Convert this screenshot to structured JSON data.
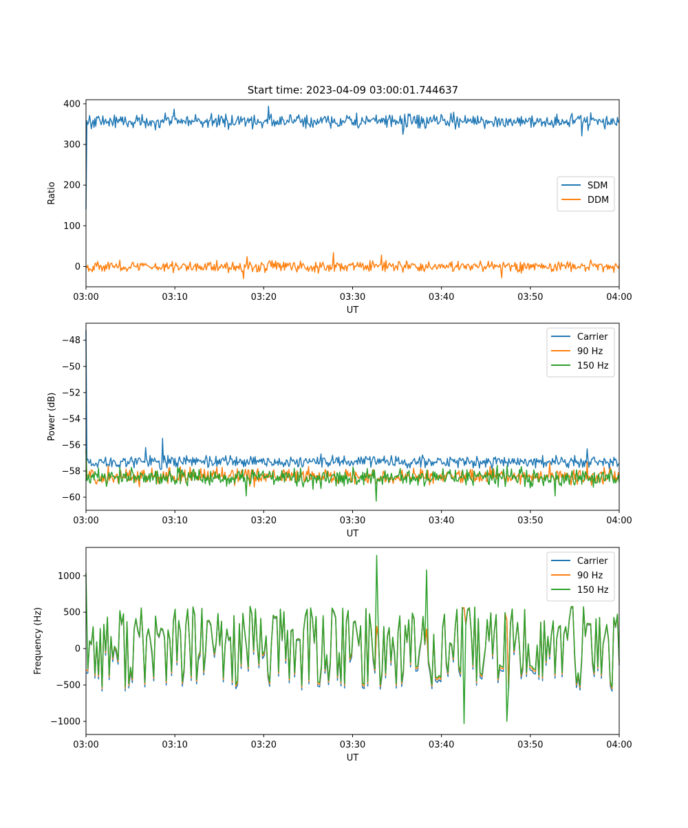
{
  "figure_title": "Start time: 2023-04-09 03:00:01.744637",
  "colors": {
    "blue": "#1f77b4",
    "orange": "#ff7f0e",
    "green": "#2ca02c"
  },
  "chart_data": [
    {
      "type": "line",
      "title": "Start time: 2023-04-09 03:00:01.744637",
      "xlabel": "UT",
      "ylabel": "Ratio",
      "xlim": [
        "03:00",
        "04:00"
      ],
      "ylim": [
        -50,
        410
      ],
      "xticks": [
        "03:00",
        "03:10",
        "03:20",
        "03:30",
        "03:40",
        "03:50",
        "04:00"
      ],
      "yticks": [
        0,
        100,
        200,
        300,
        400
      ],
      "legend": "center-right",
      "n_points": 600,
      "series": [
        {
          "name": "SDM",
          "color": "#1f77b4",
          "start": 140,
          "level": 357,
          "spread": 13,
          "spikes": [
            [
              0.165,
              387
            ],
            [
              0.343,
              394
            ],
            [
              0.594,
              325
            ],
            [
              0.93,
              321
            ]
          ]
        },
        {
          "name": "DDM",
          "color": "#ff7f0e",
          "start": 0,
          "level": 0,
          "spread": 10,
          "spikes": [
            [
              0.302,
              24
            ],
            [
              0.295,
              -30
            ],
            [
              0.464,
              34
            ],
            [
              0.555,
              28
            ],
            [
              0.78,
              -28
            ]
          ]
        }
      ]
    },
    {
      "type": "line",
      "xlabel": "UT",
      "ylabel": "Power (dB)",
      "xlim": [
        "03:00",
        "04:00"
      ],
      "ylim": [
        -61,
        -46.7
      ],
      "xticks": [
        "03:00",
        "03:10",
        "03:20",
        "03:30",
        "03:40",
        "03:50",
        "04:00"
      ],
      "yticks": [
        -48,
        -50,
        -52,
        -54,
        -56,
        -58,
        -60
      ],
      "legend": "top-right",
      "n_points": 600,
      "series": [
        {
          "name": "Carrier",
          "color": "#1f77b4",
          "start": -47.2,
          "level": -57.3,
          "spread": 0.35,
          "spikes": [
            [
              0.112,
              -56.2
            ],
            [
              0.143,
              -55.5
            ],
            [
              0.94,
              -56.3
            ]
          ]
        },
        {
          "name": "90 Hz",
          "color": "#ff7f0e",
          "start": -56.5,
          "level": -58.4,
          "spread": 0.45,
          "spikes": [
            [
              0.94,
              -57.3
            ],
            [
              0.87,
              -57.4
            ]
          ]
        },
        {
          "name": "150 Hz",
          "color": "#2ca02c",
          "start": -56.3,
          "level": -58.5,
          "spread": 0.5,
          "spikes": [
            [
              0.545,
              -60.3
            ],
            [
              0.88,
              -59.9
            ],
            [
              0.3,
              -59.9
            ]
          ]
        }
      ]
    },
    {
      "type": "line",
      "xlabel": "UT",
      "ylabel": "Frequency (Hz)",
      "xlim": [
        "03:00",
        "04:00"
      ],
      "ylim": [
        -1180,
        1390
      ],
      "xticks": [
        "03:00",
        "03:10",
        "03:20",
        "03:30",
        "03:40",
        "03:50",
        "04:00"
      ],
      "yticks": [
        1000,
        500,
        0,
        -500,
        -1000
      ],
      "legend": "top-right",
      "n_points": 300,
      "series": [
        {
          "name": "Carrier",
          "color": "#1f77b4",
          "offset": -60
        },
        {
          "name": "90 Hz",
          "color": "#ff7f0e",
          "offset": -25
        },
        {
          "name": "150 Hz",
          "color": "#2ca02c",
          "offset": 0,
          "amplitude": 420,
          "spikes": [
            [
              0.545,
              1280
            ],
            [
              0.64,
              1080
            ],
            [
              0.79,
              -1000
            ],
            [
              0.71,
              -1030
            ],
            [
              0.0,
              1040
            ]
          ]
        }
      ]
    }
  ]
}
